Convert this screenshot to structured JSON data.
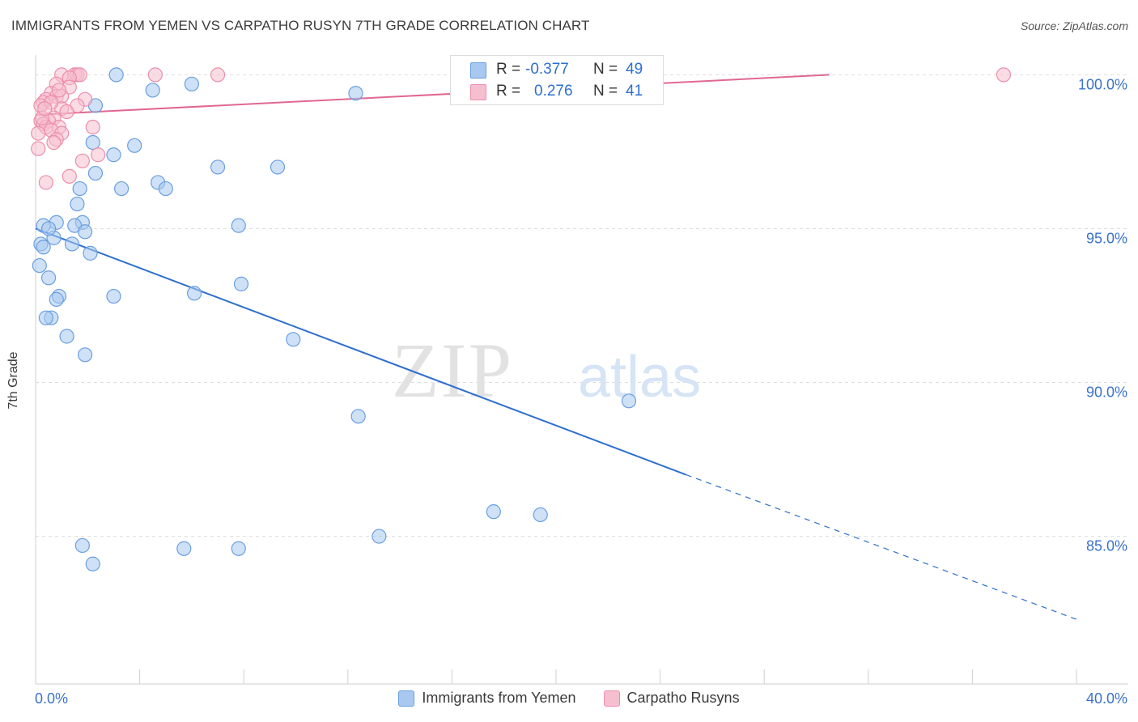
{
  "title": "IMMIGRANTS FROM YEMEN VS CARPATHO RUSYN 7TH GRADE CORRELATION CHART",
  "source": "Source: ZipAtlas.com",
  "watermark": {
    "zip": "ZIP",
    "atlas": "atlas"
  },
  "stats": [
    {
      "r_label": "R =",
      "r_value": "-0.377",
      "n_label": "N =",
      "n_value": "49",
      "color": "#a8c8f0",
      "border": "#6a9fe0"
    },
    {
      "r_label": "R =",
      "r_value": "0.276",
      "n_label": "N =",
      "n_value": "41",
      "color": "#f6bfd0",
      "border": "#ec8fab"
    }
  ],
  "chart_data": {
    "type": "scatter",
    "title": "IMMIGRANTS FROM YEMEN VS CARPATHO RUSYN 7TH GRADE CORRELATION CHART",
    "xlabel": "",
    "ylabel": "7th Grade",
    "xlim": [
      0,
      40
    ],
    "ylim": [
      80.2,
      100.8
    ],
    "x_tick_labels": [
      {
        "value": 0,
        "label": "0.0%"
      },
      {
        "value": 40,
        "label": "40.0%"
      }
    ],
    "y_tick_labels": [
      {
        "value": 100,
        "label": "100.0%"
      },
      {
        "value": 95,
        "label": "95.0%"
      },
      {
        "value": 90,
        "label": "90.0%"
      },
      {
        "value": 85,
        "label": "85.0%"
      }
    ],
    "x_minor_ticks": [
      4,
      8,
      12,
      16,
      20,
      24,
      28,
      32,
      36,
      40
    ],
    "legend": [
      "Immigrants from Yemen",
      "Carpatho Rusyns"
    ],
    "series": [
      {
        "name": "Immigrants from Yemen",
        "color": "#6a9fe0",
        "fill": "#a8c8f0",
        "trend": {
          "x0": 0,
          "y0": 95.0,
          "x1": 25.0,
          "y1": 87.0,
          "dash_to_x": 40,
          "dash_to_y": 82.3,
          "color": "#2e6fce"
        },
        "points": [
          [
            3.1,
            100.0
          ],
          [
            4.5,
            99.5
          ],
          [
            6.0,
            99.7
          ],
          [
            12.3,
            99.4
          ],
          [
            2.3,
            99.0
          ],
          [
            2.2,
            97.8
          ],
          [
            3.8,
            97.7
          ],
          [
            3.0,
            97.4
          ],
          [
            2.3,
            96.8
          ],
          [
            7.0,
            97.0
          ],
          [
            9.3,
            97.0
          ],
          [
            4.7,
            96.5
          ],
          [
            3.3,
            96.3
          ],
          [
            1.7,
            96.3
          ],
          [
            5.0,
            96.3
          ],
          [
            1.6,
            95.8
          ],
          [
            0.8,
            95.2
          ],
          [
            1.8,
            95.2
          ],
          [
            0.3,
            95.1
          ],
          [
            1.5,
            95.1
          ],
          [
            7.8,
            95.1
          ],
          [
            1.9,
            94.9
          ],
          [
            0.7,
            94.7
          ],
          [
            0.2,
            94.5
          ],
          [
            0.3,
            94.4
          ],
          [
            1.4,
            94.5
          ],
          [
            2.1,
            94.2
          ],
          [
            0.15,
            93.8
          ],
          [
            0.5,
            93.4
          ],
          [
            7.9,
            93.2
          ],
          [
            0.9,
            92.8
          ],
          [
            3.0,
            92.8
          ],
          [
            6.1,
            92.9
          ],
          [
            0.8,
            92.7
          ],
          [
            0.6,
            92.1
          ],
          [
            0.4,
            92.1
          ],
          [
            1.2,
            91.5
          ],
          [
            9.9,
            91.4
          ],
          [
            1.9,
            90.9
          ],
          [
            22.8,
            89.4
          ],
          [
            12.4,
            88.9
          ],
          [
            17.6,
            85.8
          ],
          [
            19.4,
            85.7
          ],
          [
            13.2,
            85.0
          ],
          [
            1.8,
            84.7
          ],
          [
            5.7,
            84.6
          ],
          [
            7.8,
            84.6
          ],
          [
            2.2,
            84.1
          ],
          [
            0.5,
            95.0
          ]
        ]
      },
      {
        "name": "Carpatho Rusyns",
        "color": "#ec8fab",
        "fill": "#f6bfd0",
        "trend": {
          "x0": 0,
          "y0": 98.7,
          "x1": 30.5,
          "y1": 100.0,
          "color": "#e06890"
        },
        "points": [
          [
            1.0,
            100.0
          ],
          [
            1.5,
            100.0
          ],
          [
            1.6,
            100.0
          ],
          [
            1.7,
            100.0
          ],
          [
            4.6,
            100.0
          ],
          [
            7.0,
            100.0
          ],
          [
            37.2,
            100.0
          ],
          [
            1.3,
            99.9
          ],
          [
            0.8,
            99.7
          ],
          [
            1.3,
            99.6
          ],
          [
            0.6,
            99.4
          ],
          [
            0.8,
            99.3
          ],
          [
            1.9,
            99.2
          ],
          [
            1.0,
            99.3
          ],
          [
            0.4,
            99.2
          ],
          [
            1.6,
            99.0
          ],
          [
            0.3,
            99.1
          ],
          [
            0.2,
            99.0
          ],
          [
            1.0,
            98.9
          ],
          [
            0.7,
            98.6
          ],
          [
            0.5,
            98.5
          ],
          [
            0.2,
            98.5
          ],
          [
            0.3,
            98.4
          ],
          [
            0.4,
            98.3
          ],
          [
            0.9,
            98.3
          ],
          [
            0.6,
            98.2
          ],
          [
            0.1,
            98.1
          ],
          [
            2.2,
            98.3
          ],
          [
            1.0,
            98.1
          ],
          [
            0.8,
            97.9
          ],
          [
            0.7,
            97.8
          ],
          [
            0.1,
            97.6
          ],
          [
            2.4,
            97.4
          ],
          [
            1.8,
            97.2
          ],
          [
            1.3,
            96.7
          ],
          [
            0.4,
            96.5
          ],
          [
            0.25,
            98.6
          ],
          [
            0.6,
            99.1
          ],
          [
            1.2,
            98.8
          ],
          [
            0.35,
            98.9
          ],
          [
            0.9,
            99.5
          ]
        ]
      }
    ]
  }
}
